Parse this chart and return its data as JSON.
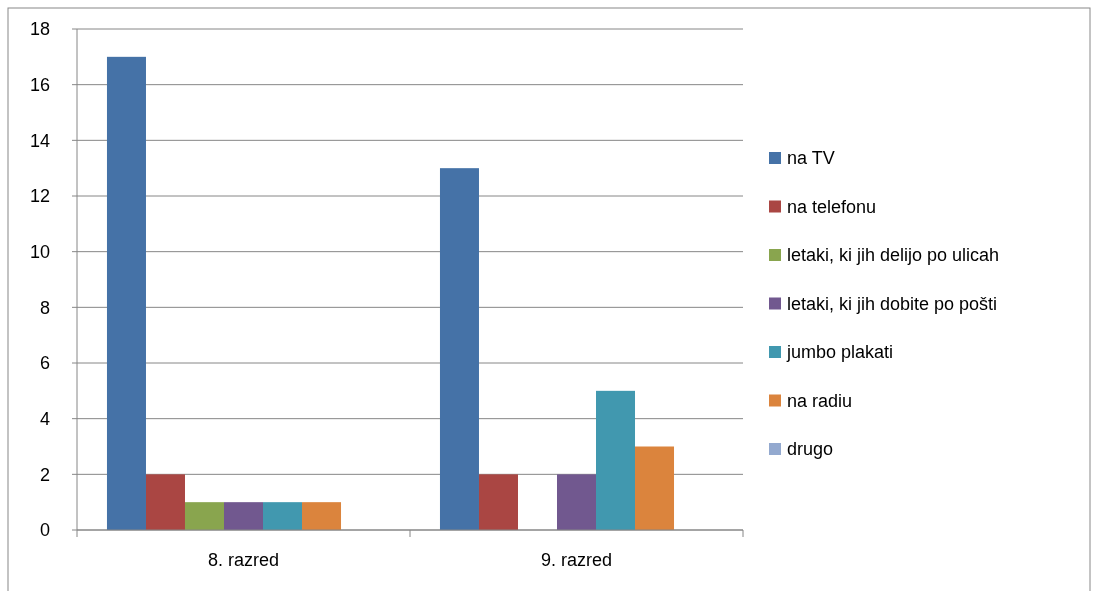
{
  "chart_data": {
    "type": "bar",
    "categories": [
      "8. razred",
      "9. razred"
    ],
    "series": [
      {
        "name": "na TV",
        "color": "#4572a7",
        "values": [
          17,
          13
        ]
      },
      {
        "name": "na telefonu",
        "color": "#aa4643",
        "values": [
          2,
          2
        ]
      },
      {
        "name": "letaki, ki jih delijo po ulicah",
        "color": "#89a54e",
        "values": [
          1,
          0
        ]
      },
      {
        "name": "letaki, ki jih dobite po pošti",
        "color": "#71588f",
        "values": [
          1,
          2
        ]
      },
      {
        "name": "jumbo plakati",
        "color": "#4198af",
        "values": [
          1,
          5
        ]
      },
      {
        "name": "na radiu",
        "color": "#db843d",
        "values": [
          1,
          3
        ]
      },
      {
        "name": "drugo",
        "color": "#93a9cf",
        "values": [
          0,
          0
        ]
      }
    ],
    "ylim": [
      0,
      18
    ],
    "yticks": [
      0,
      2,
      4,
      6,
      8,
      10,
      12,
      14,
      16,
      18
    ],
    "grid": "y",
    "legend": "right"
  }
}
